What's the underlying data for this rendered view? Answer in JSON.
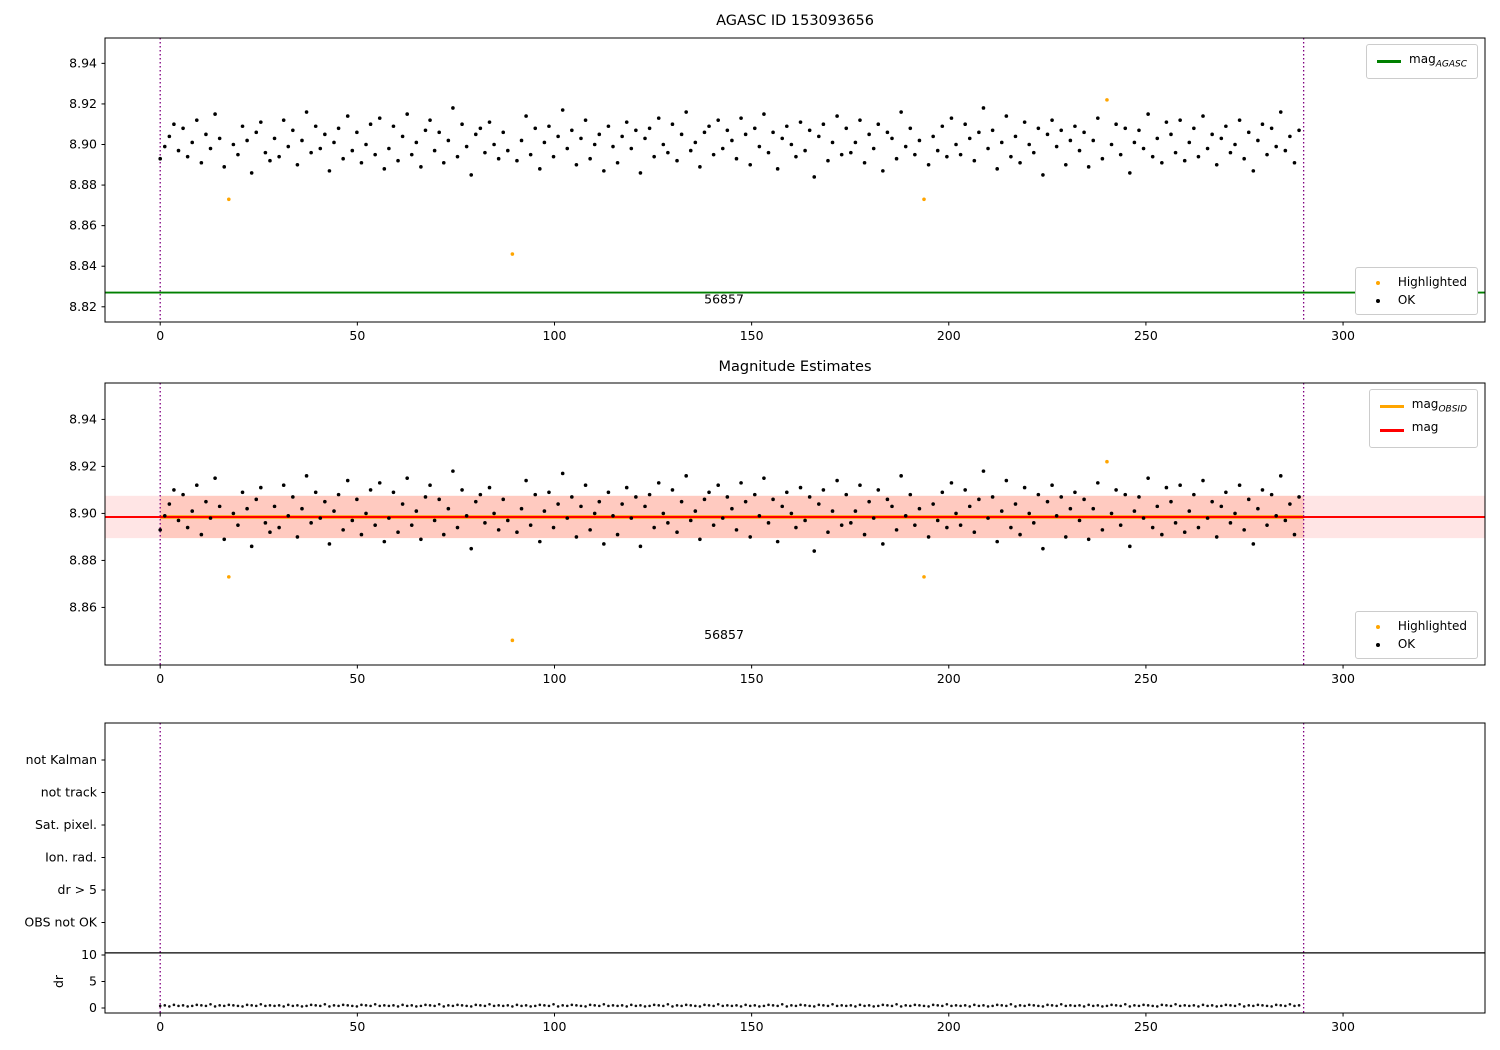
{
  "chart_data": [
    {
      "type": "scatter",
      "title": "AGASC ID 153093656",
      "xlim": [
        -14,
        336
      ],
      "ylim": [
        8.8125,
        8.9525
      ],
      "xticks": [
        0,
        50,
        100,
        150,
        200,
        250,
        300
      ],
      "yticks": [
        8.82,
        8.84,
        8.86,
        8.88,
        8.9,
        8.92,
        8.94
      ],
      "hline": {
        "y": 8.827,
        "color": "#008000"
      },
      "vlines": {
        "xs": [
          0,
          290
        ],
        "color": "#800080"
      },
      "annotation": {
        "text": "56857",
        "x": 143,
        "y": 8.8215
      },
      "legend_line": {
        "label_main": "mag",
        "label_sub": "AGASC",
        "color": "#008000"
      },
      "legend_points": [
        {
          "label": "Highlighted",
          "color": "#ffa500"
        },
        {
          "label": "OK",
          "color": "#000000"
        }
      ]
    },
    {
      "type": "scatter",
      "title": "Magnitude Estimates",
      "xlim": [
        -14,
        336
      ],
      "ylim": [
        8.8355,
        8.9555
      ],
      "xticks": [
        0,
        50,
        100,
        150,
        200,
        250,
        300
      ],
      "yticks": [
        8.86,
        8.88,
        8.9,
        8.92,
        8.94
      ],
      "mag_line": {
        "y": 8.8985,
        "color": "#ff0000"
      },
      "obsid_line": {
        "y": 8.8985,
        "x0": 0,
        "x1": 290,
        "color": "#ffa500"
      },
      "band_full": {
        "ylo": 8.8895,
        "yhi": 8.9075,
        "color": "rgba(255,0,0,0.10)"
      },
      "band_obsid": {
        "ylo": 8.8895,
        "yhi": 8.9075,
        "x0": 0,
        "x1": 290,
        "color": "rgba(255,85,30,0.18)"
      },
      "vlines": {
        "xs": [
          0,
          290
        ],
        "color": "#800080"
      },
      "annotation": {
        "text": "56857",
        "x": 143,
        "y": 8.8465
      },
      "legend_lines": [
        {
          "label_main": "mag",
          "label_sub": "OBSID",
          "color": "#ffa500"
        },
        {
          "label_main": "mag",
          "label_sub": "",
          "color": "#ff0000"
        }
      ],
      "legend_points": [
        {
          "label": "Highlighted",
          "color": "#ffa500"
        },
        {
          "label": "OK",
          "color": "#000000"
        }
      ]
    },
    {
      "type": "scatter",
      "title": "",
      "categories": [
        "not Kalman",
        "not track",
        "Sat. pixel.",
        "Ion. rad.",
        "dr > 5",
        "OBS not OK"
      ],
      "dr_axis_label": "dr",
      "dr_ticks": [
        0,
        5,
        10
      ],
      "separator_dr": 10.4,
      "xlim": [
        -14,
        336
      ],
      "xticks": [
        0,
        50,
        100,
        150,
        200,
        250,
        300
      ],
      "vlines": {
        "xs": [
          0,
          290
        ],
        "color": "#800080"
      }
    }
  ],
  "scatter": {
    "x_start": 0,
    "x_step": 1.16,
    "highlighted": [
      15,
      77,
      167,
      207
    ],
    "point_color": "#000000",
    "highlight_color": "#ffa500",
    "y": [
      8.893,
      8.899,
      8.904,
      8.91,
      8.897,
      8.908,
      8.894,
      8.901,
      8.912,
      8.891,
      8.905,
      8.898,
      8.915,
      8.903,
      8.889,
      8.873,
      8.9,
      8.895,
      8.909,
      8.902,
      8.886,
      8.906,
      8.911,
      8.896,
      8.892,
      8.903,
      8.894,
      8.912,
      8.899,
      8.907,
      8.89,
      8.902,
      8.916,
      8.896,
      8.909,
      8.898,
      8.905,
      8.887,
      8.901,
      8.908,
      8.893,
      8.914,
      8.897,
      8.906,
      8.891,
      8.9,
      8.91,
      8.895,
      8.913,
      8.888,
      8.898,
      8.909,
      8.892,
      8.904,
      8.915,
      8.895,
      8.901,
      8.889,
      8.907,
      8.912,
      8.897,
      8.906,
      8.891,
      8.902,
      8.918,
      8.894,
      8.91,
      8.899,
      8.885,
      8.905,
      8.908,
      8.896,
      8.911,
      8.9,
      8.893,
      8.906,
      8.897,
      8.846,
      8.892,
      8.902,
      8.914,
      8.895,
      8.908,
      8.888,
      8.901,
      8.909,
      8.894,
      8.904,
      8.917,
      8.898,
      8.907,
      8.89,
      8.903,
      8.912,
      8.893,
      8.9,
      8.905,
      8.887,
      8.909,
      8.899,
      8.891,
      8.904,
      8.911,
      8.898,
      8.907,
      8.886,
      8.903,
      8.908,
      8.894,
      8.913,
      8.9,
      8.896,
      8.91,
      8.892,
      8.905,
      8.916,
      8.897,
      8.901,
      8.889,
      8.906,
      8.909,
      8.895,
      8.912,
      8.898,
      8.907,
      8.902,
      8.893,
      8.913,
      8.905,
      8.89,
      8.908,
      8.899,
      8.915,
      8.896,
      8.906,
      8.888,
      8.903,
      8.909,
      8.9,
      8.894,
      8.911,
      8.897,
      8.907,
      8.884,
      8.904,
      8.91,
      8.892,
      8.901,
      8.914,
      8.895,
      8.908,
      8.896,
      8.901,
      8.912,
      8.891,
      8.905,
      8.898,
      8.91,
      8.887,
      8.906,
      8.903,
      8.893,
      8.916,
      8.899,
      8.908,
      8.895,
      8.902,
      8.873,
      8.89,
      8.904,
      8.897,
      8.909,
      8.894,
      8.913,
      8.9,
      8.895,
      8.91,
      8.903,
      8.892,
      8.906,
      8.918,
      8.898,
      8.907,
      8.888,
      8.901,
      8.914,
      8.894,
      8.904,
      8.891,
      8.911,
      8.9,
      8.896,
      8.908,
      8.885,
      8.905,
      8.912,
      8.899,
      8.907,
      8.89,
      8.902,
      8.909,
      8.897,
      8.906,
      8.889,
      8.902,
      8.913,
      8.893,
      8.922,
      8.9,
      8.91,
      8.895,
      8.908,
      8.886,
      8.901,
      8.907,
      8.898,
      8.915,
      8.894,
      8.903,
      8.891,
      8.911,
      8.905,
      8.896,
      8.912,
      8.892,
      8.901,
      8.908,
      8.894,
      8.914,
      8.898,
      8.905,
      8.89,
      8.903,
      8.909,
      8.896,
      8.9,
      8.912,
      8.893,
      8.906,
      8.887,
      8.902,
      8.91,
      8.895,
      8.908,
      8.899,
      8.916,
      8.897,
      8.904,
      8.891,
      8.907
    ]
  },
  "dr_values": [
    0.4,
    0.5,
    0.3,
    0.6,
    0.4,
    0.5,
    0.3,
    0.4,
    0.6,
    0.5,
    0.4,
    0.7,
    0.3,
    0.5,
    0.4,
    0.6,
    0.5,
    0.4,
    0.3,
    0.6,
    0.5,
    0.4,
    0.7,
    0.4,
    0.5,
    0.4,
    0.5,
    0.3,
    0.6,
    0.4,
    0.5,
    0.3,
    0.4,
    0.6,
    0.5,
    0.4,
    0.7,
    0.3,
    0.5,
    0.4,
    0.6,
    0.5,
    0.4,
    0.3,
    0.6,
    0.5,
    0.4,
    0.7,
    0.4,
    0.5,
    0.4,
    0.5,
    0.3,
    0.6,
    0.4,
    0.5,
    0.3,
    0.4,
    0.6,
    0.5,
    0.4,
    0.7,
    0.3,
    0.5,
    0.4,
    0.6,
    0.5,
    0.4,
    0.3,
    0.6,
    0.5,
    0.4,
    0.7,
    0.4,
    0.5,
    0.4,
    0.5,
    0.3,
    0.6,
    0.4,
    0.5,
    0.3,
    0.4,
    0.6,
    0.5,
    0.4,
    0.7,
    0.3,
    0.5,
    0.4,
    0.6,
    0.5,
    0.4,
    0.3,
    0.6,
    0.5,
    0.4,
    0.7,
    0.4,
    0.5,
    0.4,
    0.5,
    0.3,
    0.6,
    0.4,
    0.5,
    0.3,
    0.4,
    0.6,
    0.5,
    0.4,
    0.7,
    0.3,
    0.5,
    0.4,
    0.6,
    0.5,
    0.4,
    0.3,
    0.6,
    0.5,
    0.4,
    0.7,
    0.4,
    0.5,
    0.4,
    0.5,
    0.3,
    0.6,
    0.4,
    0.5,
    0.3,
    0.4,
    0.6,
    0.5,
    0.4,
    0.7,
    0.3,
    0.5,
    0.4,
    0.6,
    0.5,
    0.4,
    0.3,
    0.6,
    0.5,
    0.4,
    0.7,
    0.4,
    0.5,
    0.4,
    0.5,
    0.3,
    0.6,
    0.4,
    0.5,
    0.3,
    0.4,
    0.6,
    0.5,
    0.4,
    0.7,
    0.3,
    0.5,
    0.4,
    0.6,
    0.5,
    0.4,
    0.3,
    0.6,
    0.5,
    0.4,
    0.7,
    0.4,
    0.5,
    0.4,
    0.5,
    0.3,
    0.6,
    0.4,
    0.5,
    0.3,
    0.4,
    0.6,
    0.5,
    0.4,
    0.7,
    0.3,
    0.5,
    0.4,
    0.6,
    0.5,
    0.4,
    0.3,
    0.6,
    0.5,
    0.4,
    0.7,
    0.4,
    0.5,
    0.4,
    0.5,
    0.3,
    0.6,
    0.4,
    0.5,
    0.3,
    0.4,
    0.6,
    0.5,
    0.4,
    0.7,
    0.3,
    0.5,
    0.4,
    0.6,
    0.5,
    0.4,
    0.3,
    0.6,
    0.5,
    0.4,
    0.7,
    0.4,
    0.5,
    0.4,
    0.5,
    0.3,
    0.6,
    0.4,
    0.5,
    0.3,
    0.4,
    0.6,
    0.5,
    0.4,
    0.7,
    0.3,
    0.5,
    0.4,
    0.6,
    0.5,
    0.4,
    0.3,
    0.6,
    0.5,
    0.4,
    0.7,
    0.4,
    0.5
  ]
}
